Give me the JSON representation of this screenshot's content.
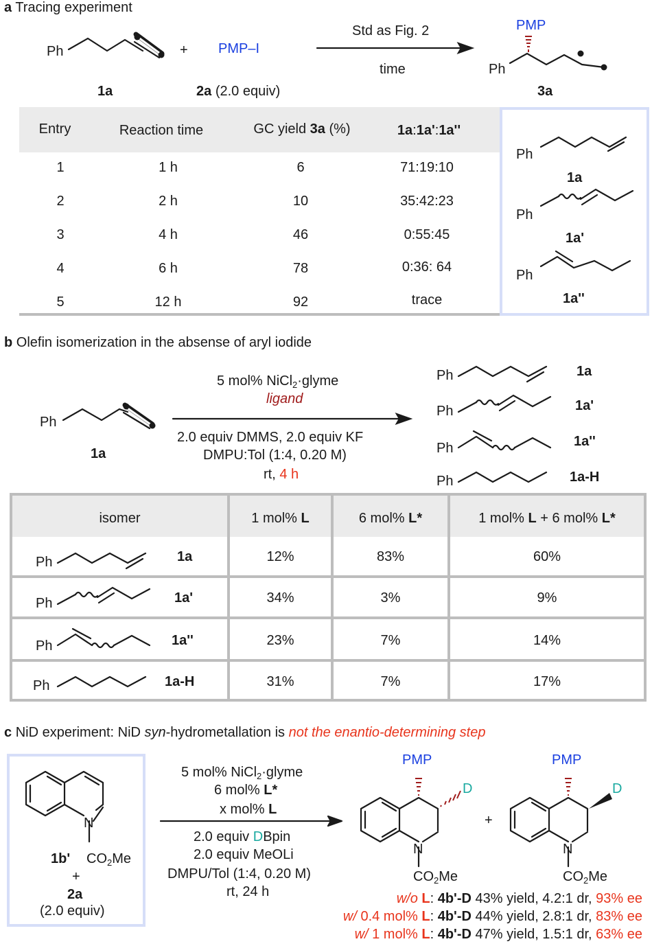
{
  "panel_a": {
    "letter": "a",
    "title": "Tracing experiment",
    "reactant_ph": "Ph",
    "plus": "+",
    "reagent": "PMP–I",
    "arrow_top": "Std as Fig. 2",
    "arrow_bottom": "time",
    "product_pmp": "PMP",
    "product_ph": "Ph",
    "label_1a": "1a",
    "label_2a": "2a",
    "label_2a_equiv": "(2.0 equiv)",
    "label_3a": "3a",
    "table": {
      "headers": [
        "Entry",
        "Reaction time",
        "GC yield ",
        "3a",
        " (%)",
        "1a",
        ":",
        "1a'",
        ":",
        "1a''"
      ],
      "rows": [
        [
          "1",
          "1 h",
          "6",
          "71:19:10"
        ],
        [
          "2",
          "2 h",
          "10",
          "35:42:23"
        ],
        [
          "3",
          "4 h",
          "46",
          "0:55:45"
        ],
        [
          "4",
          "6 h",
          "78",
          "0:36: 64"
        ],
        [
          "5",
          "12 h",
          "92",
          "trace"
        ]
      ]
    },
    "legend": [
      {
        "ph": "Ph",
        "label": "1a"
      },
      {
        "ph": "Ph",
        "label": "1a'"
      },
      {
        "ph": "Ph",
        "label": "1a''"
      }
    ]
  },
  "panel_b": {
    "letter": "b",
    "title": "Olefin isomerization in the absense of aryl iodide",
    "reactant_ph": "Ph",
    "label_1a": "1a",
    "cond1_a": "5 mol% NiCl",
    "cond1_sub": "2",
    "cond1_b": "·glyme",
    "cond2": "ligand",
    "cond3": "2.0 equiv DMMS, 2.0 equiv KF",
    "cond4": "DMPU:Tol (1:4, 0.20 M)",
    "cond5_a": "rt, ",
    "cond5_b": "4 h",
    "products": [
      {
        "ph": "Ph",
        "label": "1a"
      },
      {
        "ph": "Ph",
        "label": "1a'"
      },
      {
        "ph": "Ph",
        "label": "1a''"
      },
      {
        "ph": "Ph",
        "label": "1a-H"
      }
    ],
    "table": {
      "h_isomer": "isomer",
      "h1_a": "1 mol% ",
      "h1_b": "L",
      "h2_a": "6 mol% ",
      "h2_b": "L*",
      "h3_a": "1 mol% ",
      "h3_b": "L",
      "h3_c": " + 6 mol% ",
      "h3_d": "L*",
      "rows": [
        {
          "ph": "Ph",
          "label": "1a",
          "v1": "12%",
          "v2": "83%",
          "v3": "60%"
        },
        {
          "ph": "Ph",
          "label": "1a'",
          "v1": "34%",
          "v2": "3%",
          "v3": "9%"
        },
        {
          "ph": "Ph",
          "label": "1a''",
          "v1": "23%",
          "v2": "7%",
          "v3": "14%"
        },
        {
          "ph": "Ph",
          "label": "1a-H",
          "v1": "31%",
          "v2": "7%",
          "v3": "17%"
        }
      ]
    }
  },
  "panel_c": {
    "letter": "c",
    "title_a": "NiD experiment: NiD ",
    "title_b": "syn",
    "title_c": "-hydrometallation is ",
    "title_d": "not the enantio-determining step",
    "n_atom": "N",
    "co2me_a": "CO",
    "co2me_sub": "2",
    "co2me_b": "Me",
    "label_1b": "1b'",
    "plus": "+",
    "label_2a": "2a",
    "label_2a_equiv": "(2.0 equiv)",
    "cond1_a": "5 mol% NiCl",
    "cond1_sub": "2",
    "cond1_b": "·glyme",
    "cond2_a": "6 mol% ",
    "cond2_b": "L*",
    "cond3_a": "x mol% ",
    "cond3_b": "L",
    "cond4_a": "2.0 equiv ",
    "cond4_b": "D",
    "cond4_c": "Bpin",
    "cond5": "2.0 equiv MeOLi",
    "cond6": "DMPU/Tol (1:4, 0.20 M)",
    "cond7": "rt, 24 h",
    "pmp": "PMP",
    "d_atom": "D",
    "results": [
      {
        "cond_a": "w/o",
        "cond_b": " L",
        "label": "4b'-D",
        "text": " 43% yield, 4.2:1 dr, ",
        "ee": "93% ee"
      },
      {
        "cond_a": "w/",
        "cond_b": " 0.4 mol% ",
        "cond_c": "L",
        "label": "4b'-D",
        "text": " 44% yield, 2.8:1 dr, ",
        "ee": "83% ee"
      },
      {
        "cond_a": "w/",
        "cond_b": " 1 mol% ",
        "cond_c": "L",
        "label": "4b'-D",
        "text": " 47% yield, 1.5:1 dr, ",
        "ee": "63% ee"
      }
    ],
    "colon": ":"
  },
  "colors": {
    "blue_text": "#1a3fe0",
    "red_text": "#e8341c",
    "dark_red": "#a01c1c",
    "teal": "#1aa9a0",
    "box_border": "#d6def8",
    "table_header_bg": "#ebebeb",
    "table_border": "#bdbdbd"
  }
}
